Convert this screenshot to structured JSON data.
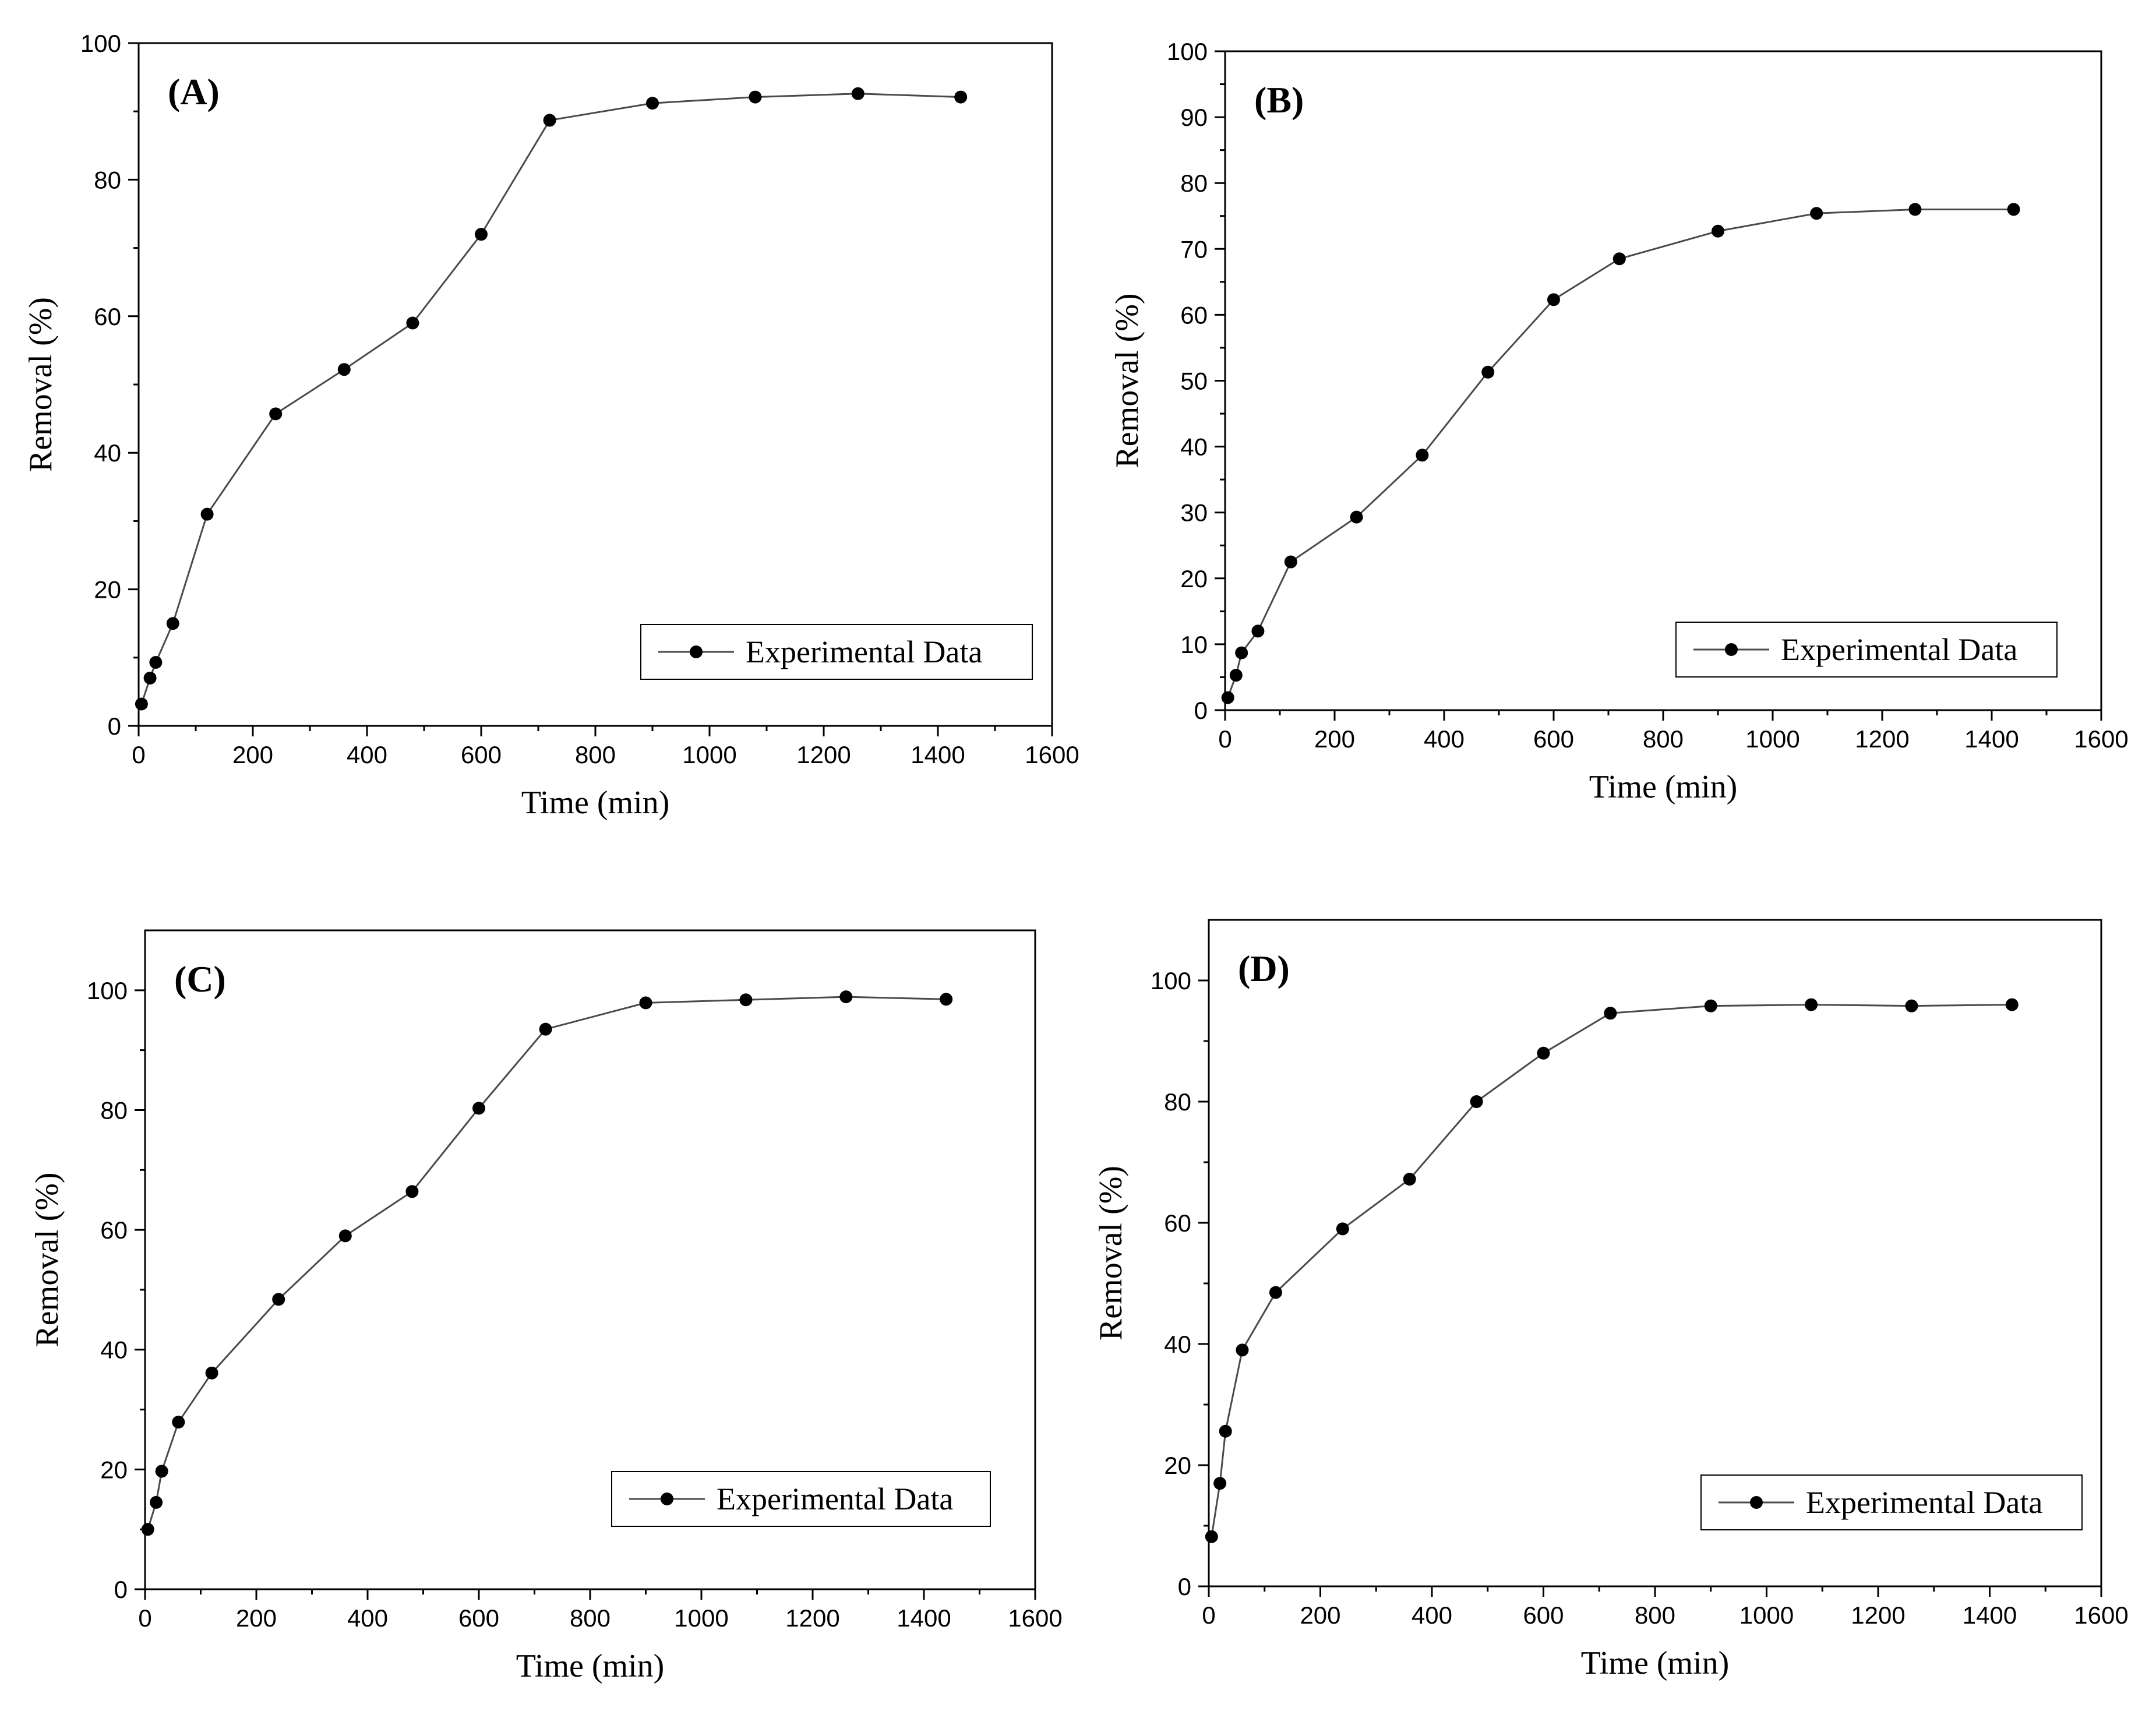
{
  "colors": {
    "line": "#4a4a4a",
    "marker": "#000000",
    "axis": "#000000",
    "background": "#ffffff"
  },
  "chart_data": [
    {
      "panel": "(A)",
      "type": "line",
      "xlabel": "Time (min)",
      "ylabel": "Removal (%)",
      "xlim": [
        0,
        1600
      ],
      "ylim": [
        0,
        100
      ],
      "xticks": [
        "0",
        "200",
        "400",
        "600",
        "800",
        "1000",
        "1200",
        "1400",
        "1600"
      ],
      "yticks": [
        "0",
        "20",
        "40",
        "60",
        "80",
        "100"
      ],
      "legend": "Experimental Data",
      "legend_position": "bottom-right",
      "series": [
        {
          "name": "Experimental Data",
          "x": [
            5,
            20,
            30,
            60,
            120,
            240,
            360,
            480,
            600,
            720,
            900,
            1080,
            1260,
            1440
          ],
          "y": [
            3.2,
            7,
            9.3,
            15,
            31,
            45.7,
            52.2,
            59,
            72,
            88.7,
            91.2,
            92.1,
            92.6,
            92.1
          ]
        }
      ]
    },
    {
      "panel": "(B)",
      "type": "line",
      "xlabel": "Time (min)",
      "ylabel": "Removal (%)",
      "xlim": [
        0,
        1600
      ],
      "ylim": [
        0,
        100
      ],
      "xticks": [
        "0",
        "200",
        "400",
        "600",
        "800",
        "1000",
        "1200",
        "1400",
        "1600"
      ],
      "yticks": [
        "0",
        "10",
        "20",
        "30",
        "40",
        "50",
        "60",
        "70",
        "80",
        "90",
        "100"
      ],
      "legend": "Experimental Data",
      "legend_position": "bottom-right",
      "series": [
        {
          "name": "Experimental Data",
          "x": [
            5,
            20,
            30,
            60,
            120,
            240,
            360,
            480,
            600,
            720,
            900,
            1080,
            1260,
            1440
          ],
          "y": [
            1.9,
            5.3,
            8.7,
            12,
            22.5,
            29.3,
            38.7,
            51.3,
            62.3,
            68.5,
            72.7,
            75.4,
            76,
            76
          ]
        }
      ]
    },
    {
      "panel": "(C)",
      "type": "line",
      "xlabel": "Time (min)",
      "ylabel": "Removal (%)",
      "xlim": [
        0,
        1600
      ],
      "ylim": [
        0,
        110
      ],
      "xticks": [
        "0",
        "200",
        "400",
        "600",
        "800",
        "1000",
        "1200",
        "1400",
        "1600"
      ],
      "yticks": [
        "0",
        "20",
        "40",
        "60",
        "80",
        "100"
      ],
      "legend": "Experimental Data",
      "legend_position": "bottom-right",
      "series": [
        {
          "name": "Experimental Data",
          "x": [
            5,
            20,
            30,
            60,
            120,
            240,
            360,
            480,
            600,
            720,
            900,
            1080,
            1260,
            1440
          ],
          "y": [
            10,
            14.5,
            19.7,
            27.9,
            36.1,
            48.4,
            59,
            66.4,
            80.3,
            93.5,
            97.9,
            98.4,
            98.9,
            98.5
          ]
        }
      ]
    },
    {
      "panel": "(D)",
      "type": "line",
      "xlabel": "Time (min)",
      "ylabel": "Removal (%)",
      "xlim": [
        0,
        1600
      ],
      "ylim": [
        0,
        110
      ],
      "xticks": [
        "0",
        "200",
        "400",
        "600",
        "800",
        "1000",
        "1200",
        "1400",
        "1600"
      ],
      "yticks": [
        "0",
        "20",
        "40",
        "60",
        "80",
        "100"
      ],
      "legend": "Experimental Data",
      "legend_position": "bottom-right",
      "series": [
        {
          "name": "Experimental Data",
          "x": [
            5,
            20,
            30,
            60,
            120,
            240,
            360,
            480,
            600,
            720,
            900,
            1080,
            1260,
            1440
          ],
          "y": [
            8.2,
            17,
            25.6,
            39,
            48.5,
            59,
            67.2,
            80,
            88,
            94.6,
            95.8,
            96,
            95.8,
            96
          ]
        }
      ]
    }
  ]
}
